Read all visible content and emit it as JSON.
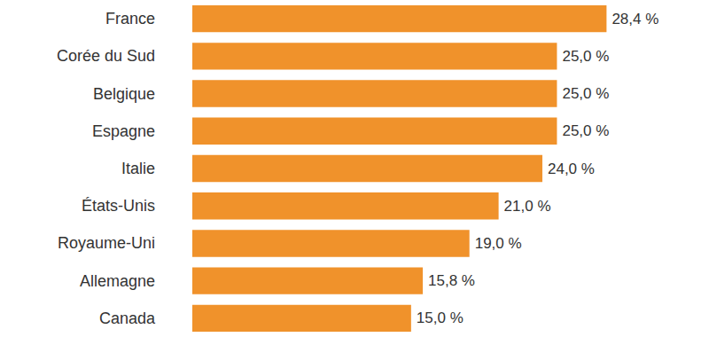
{
  "chart_data": {
    "type": "bar",
    "orientation": "horizontal",
    "categories": [
      "France",
      "Corée du Sud",
      "Belgique",
      "Espagne",
      "Italie",
      "États-Unis",
      "Royaume-Uni",
      "Allemagne",
      "Canada"
    ],
    "values": [
      28.4,
      25.0,
      25.0,
      25.0,
      24.0,
      21.0,
      19.0,
      15.8,
      15.0
    ],
    "value_labels": [
      "28,4 %",
      "25,0 %",
      "25,0 %",
      "25,0 %",
      "24,0 %",
      "21,0 %",
      "19,0 %",
      "15,8 %",
      "15,0 %"
    ],
    "color": "#f0922b",
    "xlim": [
      0,
      35
    ],
    "data_labels": true,
    "grid": false,
    "tick_labels": "y"
  }
}
